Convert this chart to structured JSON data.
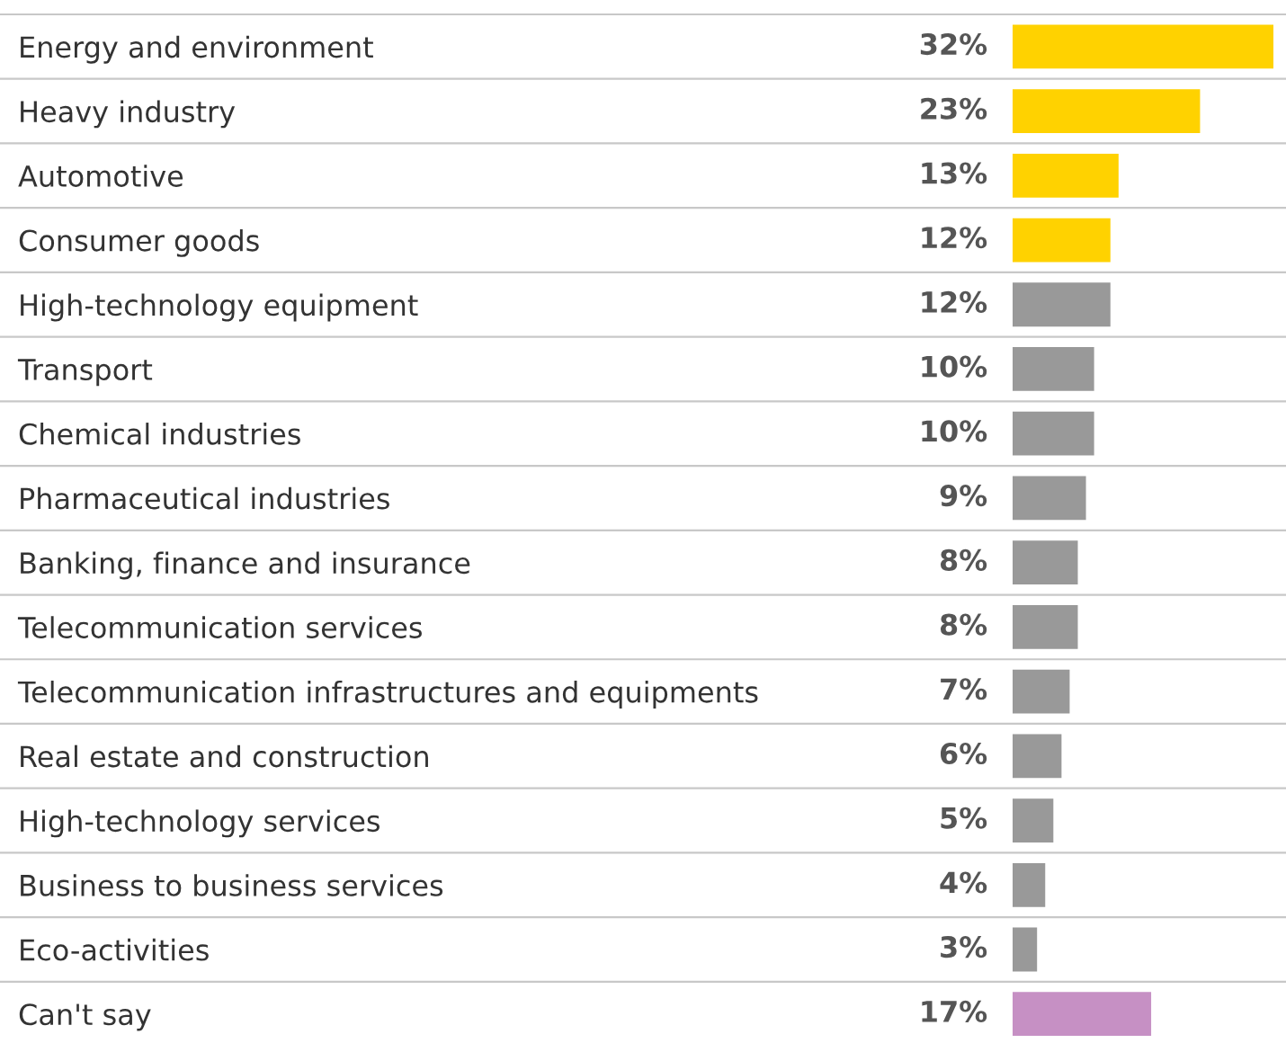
{
  "chart_data": {
    "type": "bar",
    "orientation": "horizontal",
    "categories": [
      "Energy and environment",
      "Heavy industry",
      "Automotive",
      "Consumer goods",
      "High-technology equipment",
      "Transport",
      "Chemical industries",
      "Pharmaceutical industries",
      "Banking, finance and insurance",
      "Telecommunication services",
      "Telecommunication infrastructures and equipments",
      "Real estate and construction",
      "High-technology services",
      "Business to business services",
      "Eco-activities",
      "Can't say"
    ],
    "values": [
      32,
      23,
      13,
      12,
      12,
      10,
      10,
      9,
      8,
      8,
      7,
      6,
      5,
      4,
      3,
      17
    ],
    "colors": [
      "#ffd200",
      "#ffd200",
      "#ffd200",
      "#ffd200",
      "#999999",
      "#999999",
      "#999999",
      "#999999",
      "#999999",
      "#999999",
      "#999999",
      "#999999",
      "#999999",
      "#999999",
      "#999999",
      "#c690c4"
    ],
    "value_labels": [
      "32%",
      "23%",
      "13%",
      "12%",
      "12%",
      "10%",
      "10%",
      "9%",
      "8%",
      "8%",
      "7%",
      "6%",
      "5%",
      "4%",
      "3%",
      "17%"
    ],
    "grid": false,
    "legend": false,
    "tick_labels": "y"
  }
}
